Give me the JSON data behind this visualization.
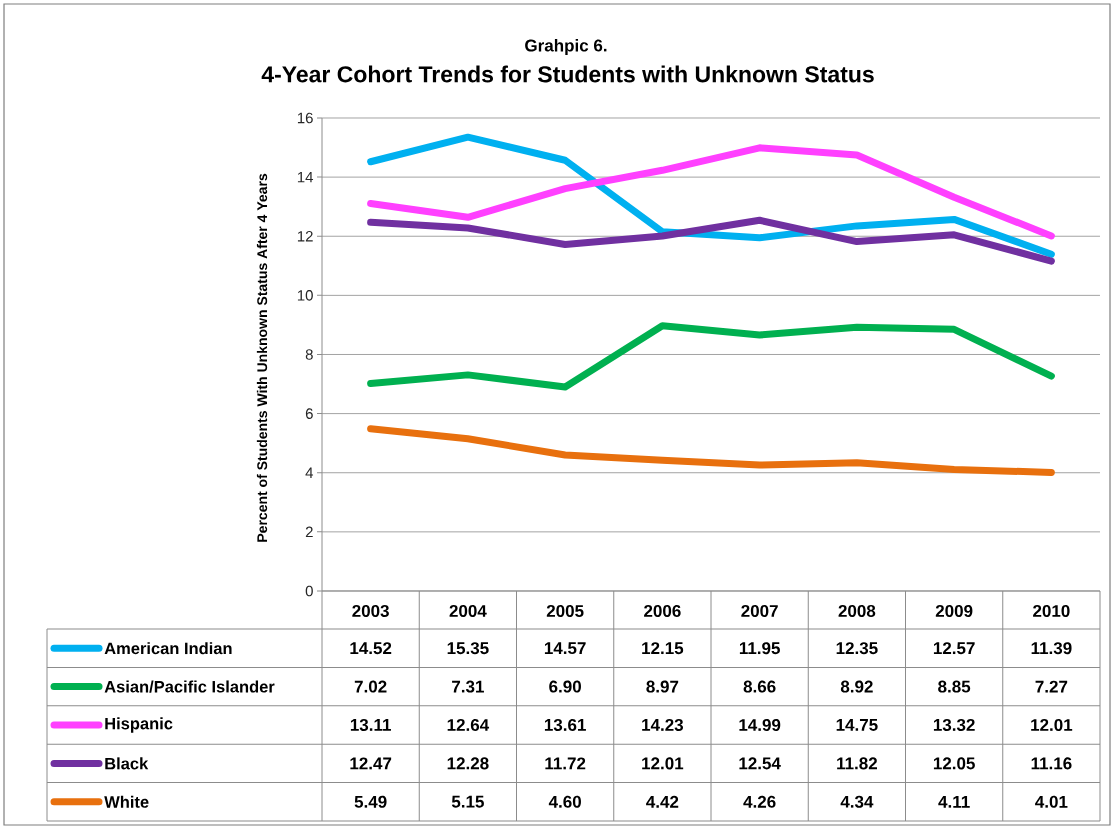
{
  "chart_data": {
    "type": "line",
    "title": "4-Year Cohort Trends for Students with Unknown Status",
    "subtitle": "Grahpic 6.",
    "ylabel": "Percent of Students With Unknown Status After 4 Years",
    "categories": [
      "2003",
      "2004",
      "2005",
      "2006",
      "2007",
      "2008",
      "2009",
      "2010"
    ],
    "series": [
      {
        "name": "American Indian",
        "color": "#00b0f0",
        "values": [
          14.52,
          15.35,
          14.57,
          12.15,
          11.95,
          12.35,
          12.57,
          11.39
        ],
        "value_labels": [
          "14.52",
          "15.35",
          "14.57",
          "12.15",
          "11.95",
          "12.35",
          "12.57",
          "11.39"
        ]
      },
      {
        "name": "Asian/Pacific Islander",
        "color": "#00b050",
        "values": [
          7.02,
          7.31,
          6.9,
          8.97,
          8.66,
          8.92,
          8.85,
          7.27
        ],
        "value_labels": [
          "7.02",
          "7.31",
          "6.90",
          "8.97",
          "8.66",
          "8.92",
          "8.85",
          "7.27"
        ]
      },
      {
        "name": "Hispanic",
        "color": "#ff40ff",
        "values": [
          13.11,
          12.64,
          13.61,
          14.23,
          14.99,
          14.75,
          13.32,
          12.01
        ],
        "value_labels": [
          "13.11",
          "12.64",
          "13.61",
          "14.23",
          "14.99",
          "14.75",
          "13.32",
          "12.01"
        ]
      },
      {
        "name": "Black",
        "color": "#7030a0",
        "values": [
          12.47,
          12.28,
          11.72,
          12.01,
          12.54,
          11.82,
          12.05,
          11.16
        ],
        "value_labels": [
          "12.47",
          "12.28",
          "11.72",
          "12.01",
          "12.54",
          "11.82",
          "12.05",
          "11.16"
        ]
      },
      {
        "name": "White",
        "color": "#e8700e",
        "values": [
          5.49,
          5.15,
          4.6,
          4.42,
          4.26,
          4.34,
          4.11,
          4.01
        ],
        "value_labels": [
          "5.49",
          "5.15",
          "4.60",
          "4.42",
          "4.26",
          "4.34",
          "4.11",
          "4.01"
        ]
      }
    ],
    "ylim": [
      0,
      16
    ],
    "yticks": [
      0,
      2,
      4,
      6,
      8,
      10,
      12,
      14,
      16
    ],
    "grid": "y",
    "legend": "bottom left",
    "line_style": "solid"
  }
}
